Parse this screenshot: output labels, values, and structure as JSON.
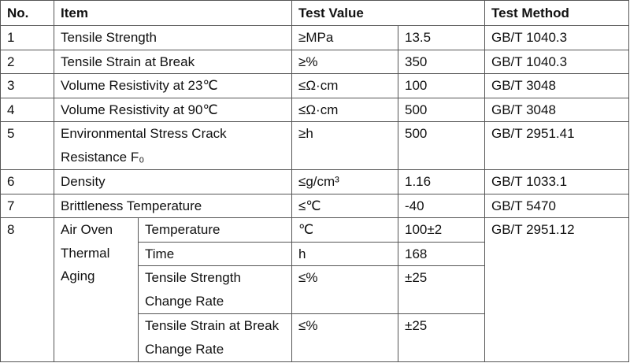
{
  "header": [
    "No.",
    "Item",
    "Test Value",
    "Test Method"
  ],
  "rows": [
    {
      "no": "1",
      "item": "Tensile Strength",
      "unit": "≥MPa",
      "value": "13.5",
      "method": "GB/T 1040.3"
    },
    {
      "no": "2",
      "item": "Tensile Strain at Break",
      "unit": "≥%",
      "value": "350",
      "method": "GB/T 1040.3"
    },
    {
      "no": "3",
      "item": "Volume Resistivity at 23℃",
      "unit": "≤Ω·cm",
      "value": "100",
      "method": "GB/T 3048"
    },
    {
      "no": "4",
      "item": "Volume Resistivity at 90℃",
      "unit": "≤Ω·cm",
      "value": "500",
      "method": "GB/T 3048"
    },
    {
      "no": "5",
      "item": "Environmental Stress Crack Resistance F₀",
      "unit": "≥h",
      "value": "500",
      "method": "GB/T 2951.41"
    },
    {
      "no": "6",
      "item": "Density",
      "unit": "≤g/cm³",
      "value": "1.16",
      "method": "GB/T 1033.1"
    },
    {
      "no": "7",
      "item": "Brittleness Temperature",
      "unit": "≤℃",
      "value": "-40",
      "method": "GB/T 5470"
    }
  ],
  "group": {
    "no": "8",
    "item": "Air Oven Thermal Aging",
    "method": "GB/T 2951.12",
    "params": [
      {
        "name": "Temperature",
        "unit": "℃",
        "value": "100±2"
      },
      {
        "name": "Time",
        "unit": "h",
        "value": "168"
      },
      {
        "name": "Tensile Strength Change Rate",
        "unit": "≤%",
        "value": "±25"
      },
      {
        "name": "Tensile Strain at Break Change Rate",
        "unit": "≤%",
        "value": "±25"
      }
    ]
  }
}
